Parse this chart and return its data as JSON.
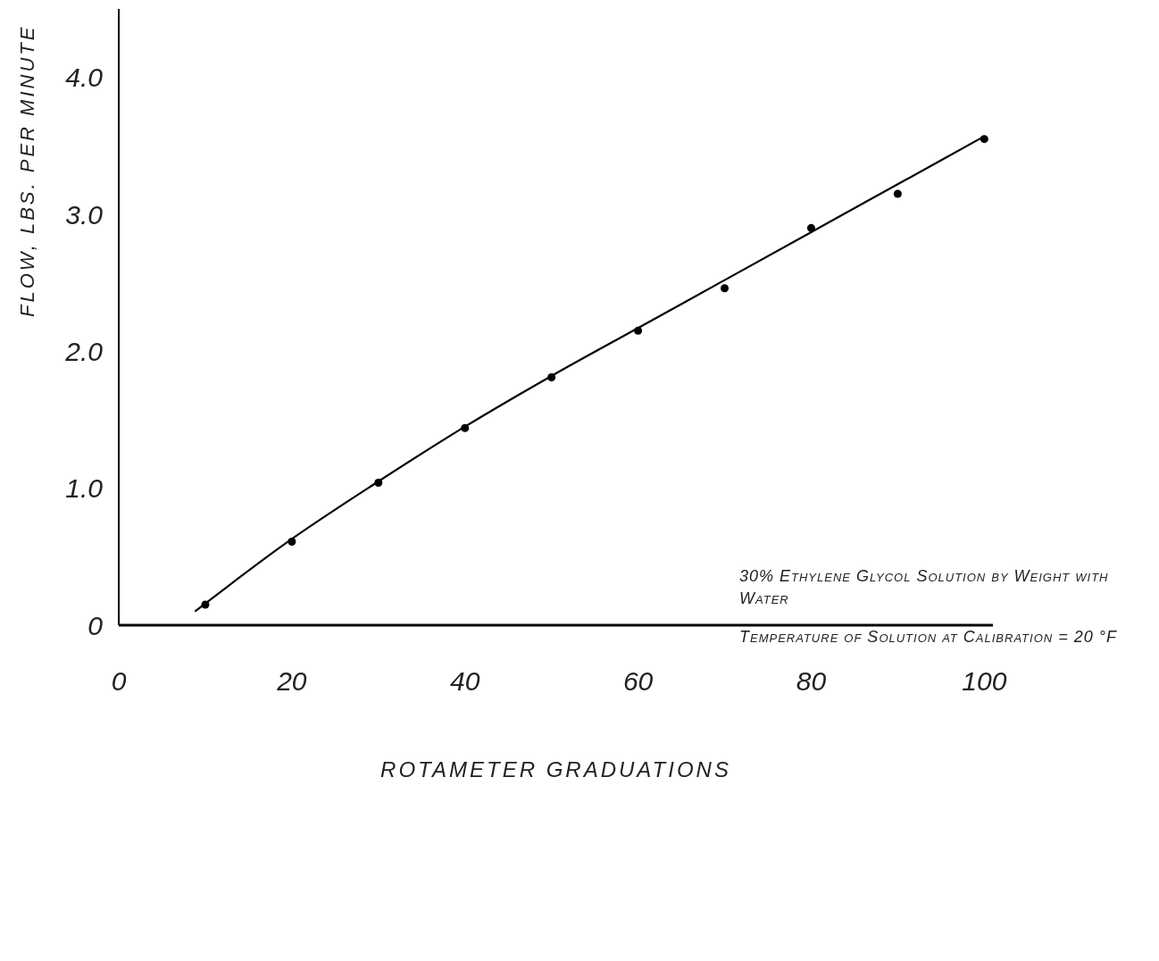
{
  "chart_data": {
    "type": "scatter",
    "xlabel": "ROTAMETER GRADUATIONS",
    "ylabel": "FLOW, LBS. PER MINUTE",
    "xlim": [
      0,
      101
    ],
    "xticks": [
      0,
      20,
      40,
      60,
      80,
      100
    ],
    "ylim": [
      0,
      4.5
    ],
    "yticks": [
      0,
      {
        "value": 1,
        "label": "1.0"
      },
      {
        "value": 2,
        "label": "2.0"
      },
      {
        "value": 3,
        "label": "3.0"
      },
      {
        "value": 4,
        "label": "4.0"
      }
    ],
    "grid": false,
    "legend": false,
    "series": [
      {
        "type": "scatter",
        "marker": "circle",
        "color": "#000000",
        "x": [
          10,
          20,
          30,
          40,
          50,
          60,
          70,
          80,
          90,
          100
        ],
        "values": [
          0.15,
          0.61,
          1.04,
          1.44,
          1.81,
          2.15,
          2.46,
          2.9,
          3.15,
          3.55
        ]
      },
      {
        "type": "line",
        "marker": "none",
        "line_style": "solid",
        "color": "#000000",
        "x": [
          8.8,
          20,
          30,
          40,
          50,
          60,
          70,
          80,
          90,
          100
        ],
        "values": [
          0.1,
          0.63,
          1.05,
          1.45,
          1.82,
          2.17,
          2.52,
          2.87,
          3.22,
          3.57
        ]
      }
    ],
    "annotations": [
      "30% Ethylene Glycol Solution by Weight with Water",
      "Temperature of Solution at Calibration = 20 °F"
    ]
  }
}
